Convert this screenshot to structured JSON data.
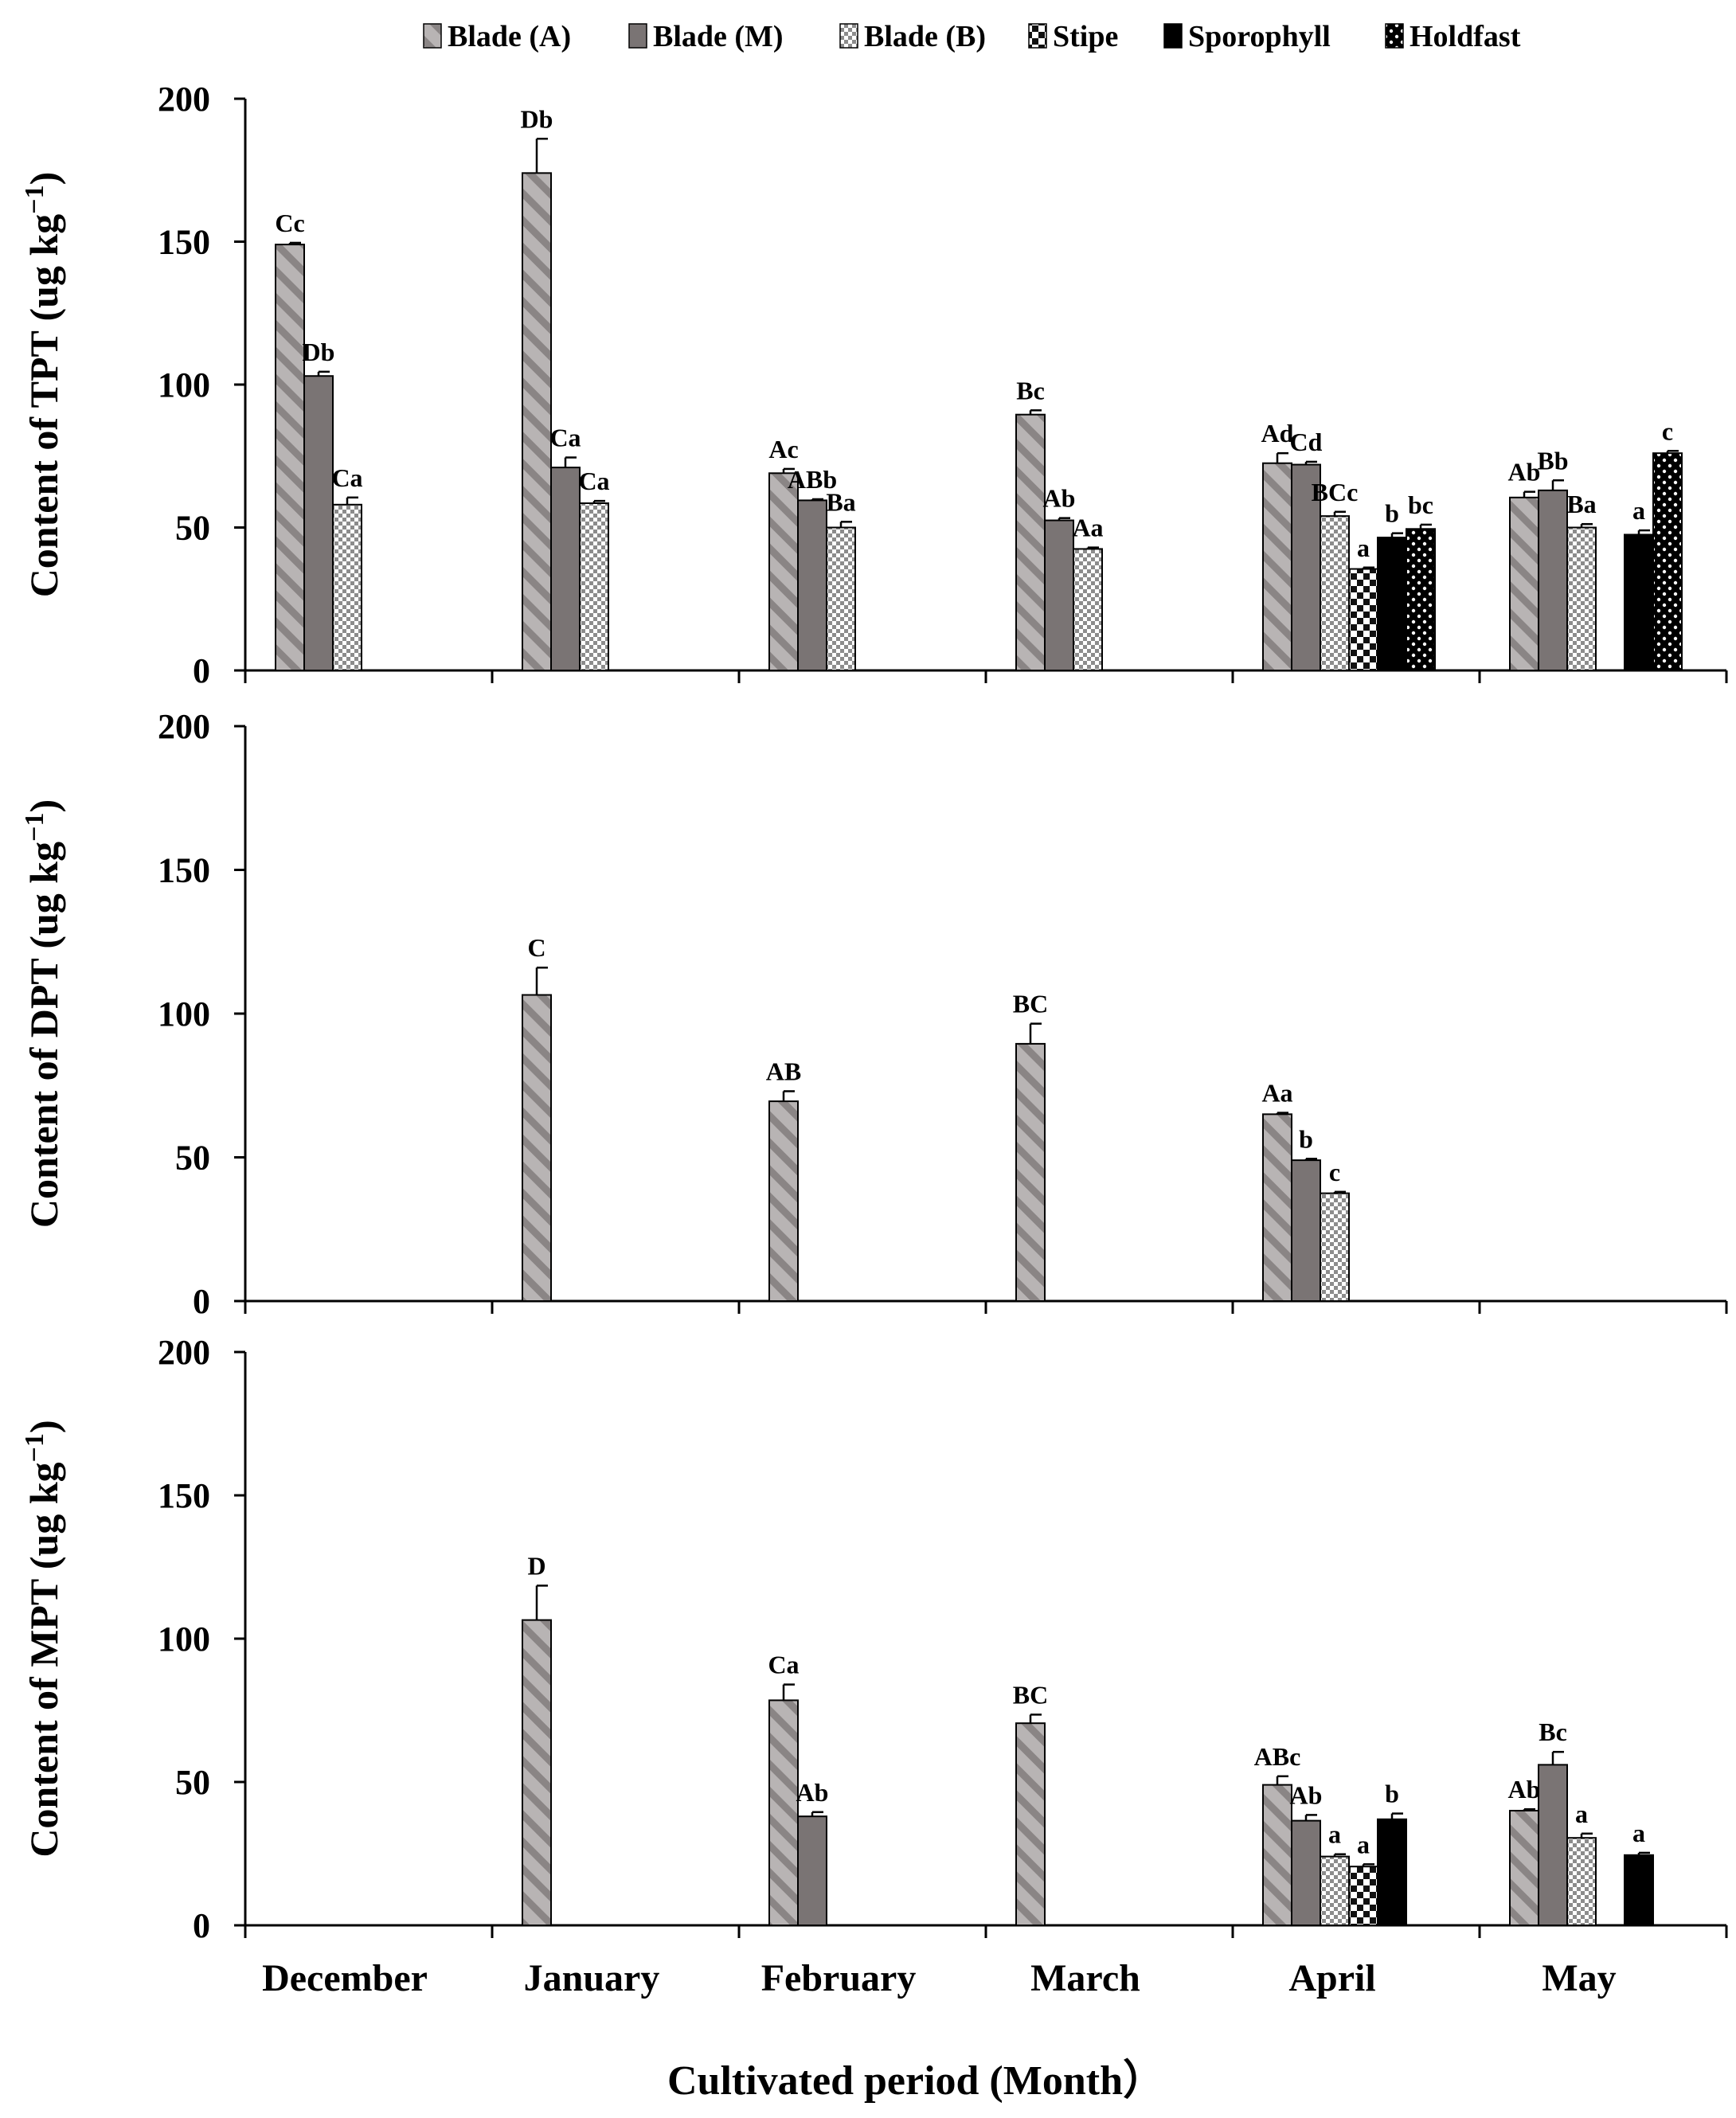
{
  "chart_data": {
    "type": "bar",
    "xlabel": "Cultivated period (Month）",
    "categories": [
      "December",
      "January",
      "February",
      "March",
      "April",
      "May"
    ],
    "legend": {
      "position": "top",
      "entries": [
        {
          "name": "Blade (A)",
          "fill": "hatch-diagonal"
        },
        {
          "name": "Blade (M)",
          "fill": "dark-gray"
        },
        {
          "name": "Blade (B)",
          "fill": "checker"
        },
        {
          "name": "Stipe",
          "fill": "coarse-checker"
        },
        {
          "name": "Sporophyll",
          "fill": "black"
        },
        {
          "name": "Holdfast",
          "fill": "black-dotted"
        }
      ]
    },
    "panels": [
      {
        "id": "tpt",
        "ylabel": "Content of TPT (ug kg",
        "ylabel_sup": "−1",
        "ylabel_close": ")",
        "ylim": [
          0,
          200
        ],
        "yticks": [
          0,
          50,
          100,
          150,
          200
        ],
        "bars": [
          {
            "month": 0,
            "series": 0,
            "value": 149,
            "err": 0.6,
            "label": "Cc"
          },
          {
            "month": 0,
            "series": 1,
            "value": 103,
            "err": 1.5,
            "label": "Db"
          },
          {
            "month": 0,
            "series": 2,
            "value": 58,
            "err": 2.5,
            "label": "Ca"
          },
          {
            "month": 1,
            "series": 0,
            "value": 174,
            "err": 12,
            "label": "Db"
          },
          {
            "month": 1,
            "series": 1,
            "value": 71,
            "err": 3.5,
            "label": "Ca"
          },
          {
            "month": 1,
            "series": 2,
            "value": 58.5,
            "err": 0.8,
            "label": "Ca"
          },
          {
            "month": 2,
            "series": 0,
            "value": 69,
            "err": 1.5,
            "label": "Ac"
          },
          {
            "month": 2,
            "series": 1,
            "value": 59.5,
            "err": 0.4,
            "label": "ABb"
          },
          {
            "month": 2,
            "series": 2,
            "value": 50,
            "err": 2,
            "label": "Ba"
          },
          {
            "month": 3,
            "series": 0,
            "value": 89.5,
            "err": 1.5,
            "label": "Bc"
          },
          {
            "month": 3,
            "series": 1,
            "value": 52.5,
            "err": 0.8,
            "label": "Ab"
          },
          {
            "month": 3,
            "series": 2,
            "value": 42.5,
            "err": 0.5,
            "label": "Aa"
          },
          {
            "month": 4,
            "series": 0,
            "value": 72.5,
            "err": 3.5,
            "label": "Ad"
          },
          {
            "month": 4,
            "series": 1,
            "value": 72,
            "err": 1,
            "label": "Cd"
          },
          {
            "month": 4,
            "series": 2,
            "value": 54,
            "err": 1.5,
            "label": "BCc"
          },
          {
            "month": 4,
            "series": 3,
            "value": 35.5,
            "err": 0.5,
            "label": "a"
          },
          {
            "month": 4,
            "series": 4,
            "value": 46.5,
            "err": 1.5,
            "label": "b"
          },
          {
            "month": 4,
            "series": 5,
            "value": 49.5,
            "err": 1.5,
            "label": "bc"
          },
          {
            "month": 5,
            "series": 0,
            "value": 60.5,
            "err": 2,
            "label": "Ab"
          },
          {
            "month": 5,
            "series": 1,
            "value": 63,
            "err": 3.5,
            "label": "Bb"
          },
          {
            "month": 5,
            "series": 2,
            "value": 50,
            "err": 1.2,
            "label": "Ba"
          },
          {
            "month": 5,
            "series": 4,
            "value": 47.5,
            "err": 1.5,
            "label": "a"
          },
          {
            "month": 5,
            "series": 5,
            "value": 76,
            "err": 0.8,
            "label": "c"
          }
        ]
      },
      {
        "id": "dpt",
        "ylabel": "Content of DPT (ug kg",
        "ylabel_sup": "−1",
        "ylabel_close": ")",
        "ylim": [
          0,
          200
        ],
        "yticks": [
          0,
          50,
          100,
          150,
          200
        ],
        "bars": [
          {
            "month": 1,
            "series": 0,
            "value": 106.5,
            "err": 9.5,
            "label": "C"
          },
          {
            "month": 2,
            "series": 0,
            "value": 69.5,
            "err": 3.5,
            "label": "AB"
          },
          {
            "month": 3,
            "series": 0,
            "value": 89.5,
            "err": 7,
            "label": "BC"
          },
          {
            "month": 4,
            "series": 0,
            "value": 65,
            "err": 0.5,
            "label": "Aa"
          },
          {
            "month": 4,
            "series": 1,
            "value": 49,
            "err": 0.5,
            "label": "b"
          },
          {
            "month": 4,
            "series": 2,
            "value": 37.5,
            "err": 0.5,
            "label": "c"
          }
        ]
      },
      {
        "id": "mpt",
        "ylabel": "Content of MPT (ug kg",
        "ylabel_sup": "−1",
        "ylabel_close": ")",
        "ylim": [
          0,
          200
        ],
        "yticks": [
          0,
          50,
          100,
          150,
          200
        ],
        "bars": [
          {
            "month": 1,
            "series": 0,
            "value": 106.5,
            "err": 12,
            "label": "D"
          },
          {
            "month": 2,
            "series": 0,
            "value": 78.5,
            "err": 5.5,
            "label": "Ca"
          },
          {
            "month": 2,
            "series": 1,
            "value": 38,
            "err": 1.5,
            "label": "Ab"
          },
          {
            "month": 3,
            "series": 0,
            "value": 70.5,
            "err": 3,
            "label": "BC"
          },
          {
            "month": 4,
            "series": 0,
            "value": 49,
            "err": 3,
            "label": "ABc"
          },
          {
            "month": 4,
            "series": 1,
            "value": 36.5,
            "err": 2,
            "label": "Ab"
          },
          {
            "month": 4,
            "series": 2,
            "value": 24,
            "err": 0.8,
            "label": "a"
          },
          {
            "month": 4,
            "series": 3,
            "value": 20.5,
            "err": 0.8,
            "label": "a"
          },
          {
            "month": 4,
            "series": 4,
            "value": 37,
            "err": 2,
            "label": "b"
          },
          {
            "month": 5,
            "series": 0,
            "value": 40,
            "err": 0.5,
            "label": "Ab"
          },
          {
            "month": 5,
            "series": 1,
            "value": 56,
            "err": 4.5,
            "label": "Bc"
          },
          {
            "month": 5,
            "series": 2,
            "value": 30.5,
            "err": 1.5,
            "label": "a"
          },
          {
            "month": 5,
            "series": 4,
            "value": 24.5,
            "err": 0.8,
            "label": "a"
          }
        ]
      }
    ]
  }
}
